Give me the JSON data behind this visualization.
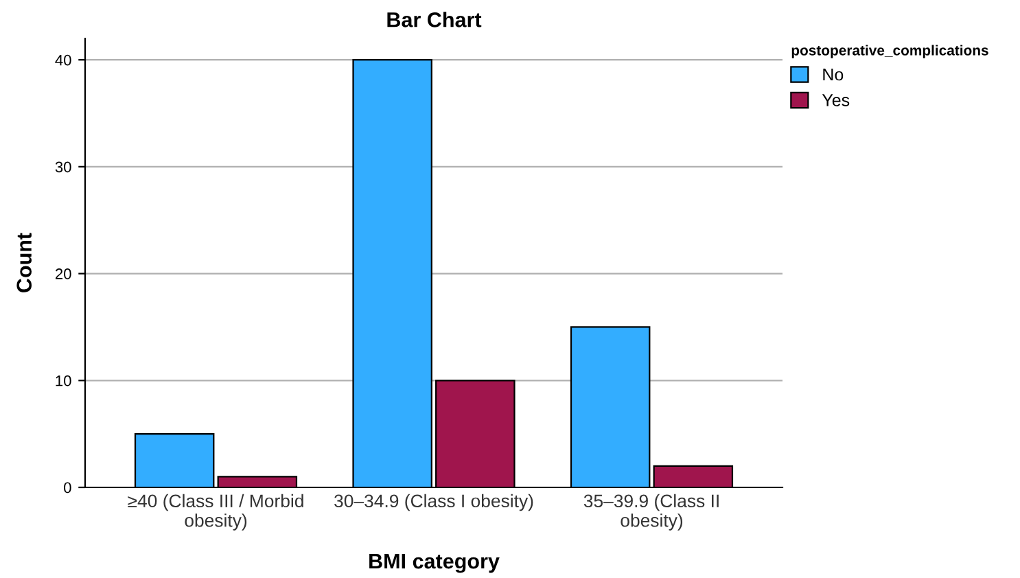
{
  "chart_data": {
    "type": "bar",
    "title": "Bar Chart",
    "xlabel": "BMI category",
    "ylabel": "Count",
    "legend_title": "postoperative_complications",
    "categories": [
      "≥40 (Class III / Morbid\nobesity)",
      "30–34.9 (Class I obesity)",
      "35–39.9 (Class II\nobesity)"
    ],
    "series": [
      {
        "name": "No",
        "color": "#33adff",
        "values": [
          5,
          40,
          15
        ]
      },
      {
        "name": "Yes",
        "color": "#a0154d",
        "values": [
          1,
          10,
          2
        ]
      }
    ],
    "ylim": [
      0,
      42
    ],
    "yticks": [
      0,
      10,
      20,
      30,
      40
    ],
    "grid": "y",
    "legend": "top right"
  }
}
